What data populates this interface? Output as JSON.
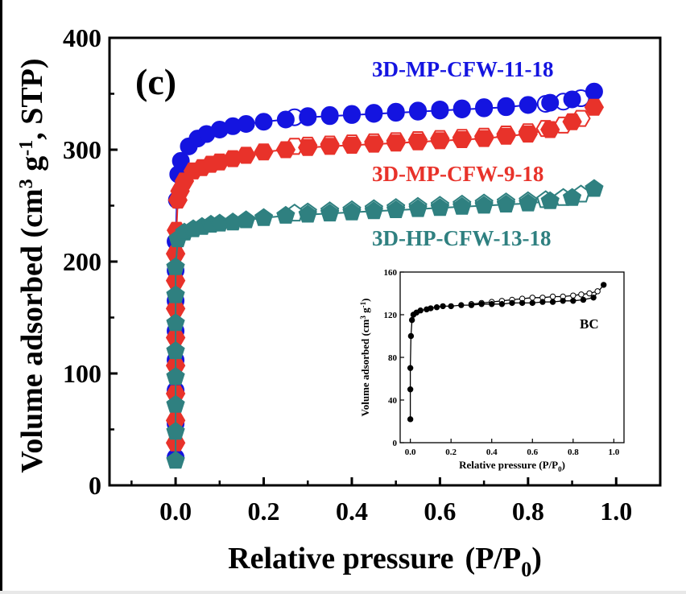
{
  "chart_data": [
    {
      "type": "scatter",
      "panel_label": "(c)",
      "xlabel": "Relative pressure",
      "xlabel_unit_main": "(P/P",
      "xlabel_unit_sub": "0",
      "xlabel_unit_close": ")",
      "ylabel_parts": [
        "Volume adsorbed (cm",
        "3",
        " g",
        "-1",
        ", STP)"
      ],
      "xlim": [
        -0.15,
        1.1
      ],
      "ylim": [
        0,
        400
      ],
      "xticks": [
        "0.0",
        "0.2",
        "0.4",
        "0.6",
        "0.8",
        "1.0"
      ],
      "xtick_values": [
        0,
        0.2,
        0.4,
        0.6,
        0.8,
        1.0
      ],
      "yticks": [
        "0",
        "100",
        "200",
        "300",
        "400"
      ],
      "ytick_values": [
        0,
        100,
        200,
        300,
        400
      ],
      "series": [
        {
          "name": "3D-MP-CFW-11-18",
          "color": "#1414e0",
          "marker": "circle",
          "adsorption": [
            [
              0.0,
              25
            ],
            [
              0.0,
              55
            ],
            [
              0.0,
              85
            ],
            [
              0.0,
              112
            ],
            [
              0.0,
              138
            ],
            [
              0.0,
              165
            ],
            [
              0.0,
              192
            ],
            [
              0.0,
              218
            ],
            [
              0.003,
              255
            ],
            [
              0.006,
              278
            ],
            [
              0.012,
              290
            ],
            [
              0.03,
              303
            ],
            [
              0.05,
              310
            ],
            [
              0.07,
              314
            ],
            [
              0.1,
              318
            ],
            [
              0.13,
              321
            ],
            [
              0.16,
              323
            ],
            [
              0.2,
              325
            ],
            [
              0.25,
              327
            ],
            [
              0.3,
              329
            ],
            [
              0.35,
              330
            ],
            [
              0.4,
              331
            ],
            [
              0.45,
              332
            ],
            [
              0.5,
              333
            ],
            [
              0.55,
              334
            ],
            [
              0.6,
              335
            ],
            [
              0.65,
              336
            ],
            [
              0.7,
              337
            ],
            [
              0.75,
              338
            ],
            [
              0.8,
              340
            ],
            [
              0.85,
              342
            ],
            [
              0.9,
              345
            ],
            [
              0.95,
              352
            ]
          ],
          "desorption": [
            [
              0.92,
              346
            ],
            [
              0.88,
              343
            ],
            [
              0.84,
              341
            ],
            [
              0.8,
              340
            ],
            [
              0.75,
              339
            ],
            [
              0.7,
              338
            ],
            [
              0.65,
              337
            ],
            [
              0.6,
              336
            ],
            [
              0.55,
              335
            ],
            [
              0.5,
              334
            ],
            [
              0.45,
              333
            ],
            [
              0.4,
              332
            ],
            [
              0.35,
              331
            ],
            [
              0.3,
              330
            ],
            [
              0.27,
              329
            ]
          ]
        },
        {
          "name": "3D-MP-CFW-9-18",
          "color": "#e8322a",
          "marker": "hexagon",
          "adsorption": [
            [
              0.0,
              38
            ],
            [
              0.0,
              58
            ],
            [
              0.0,
              82
            ],
            [
              0.0,
              107
            ],
            [
              0.0,
              132
            ],
            [
              0.0,
              158
            ],
            [
              0.0,
              183
            ],
            [
              0.0,
              207
            ],
            [
              0.002,
              228
            ],
            [
              0.005,
              255
            ],
            [
              0.01,
              263
            ],
            [
              0.02,
              272
            ],
            [
              0.04,
              281
            ],
            [
              0.06,
              284
            ],
            [
              0.08,
              287
            ],
            [
              0.1,
              289
            ],
            [
              0.13,
              292
            ],
            [
              0.16,
              295
            ],
            [
              0.2,
              298
            ],
            [
              0.25,
              300
            ],
            [
              0.3,
              302
            ],
            [
              0.35,
              303
            ],
            [
              0.4,
              304
            ],
            [
              0.45,
              305
            ],
            [
              0.5,
              306
            ],
            [
              0.55,
              307
            ],
            [
              0.6,
              308
            ],
            [
              0.65,
              309
            ],
            [
              0.7,
              310
            ],
            [
              0.75,
              312
            ],
            [
              0.8,
              314
            ],
            [
              0.85,
              318
            ],
            [
              0.9,
              325
            ],
            [
              0.95,
              338
            ]
          ],
          "desorption": [
            [
              0.92,
              328
            ],
            [
              0.88,
              322
            ],
            [
              0.84,
              319
            ],
            [
              0.8,
              316
            ],
            [
              0.75,
              314
            ],
            [
              0.7,
              312
            ],
            [
              0.65,
              311
            ],
            [
              0.6,
              310
            ],
            [
              0.55,
              309
            ],
            [
              0.5,
              308
            ],
            [
              0.45,
              307
            ],
            [
              0.4,
              306
            ],
            [
              0.35,
              305
            ],
            [
              0.3,
              304
            ],
            [
              0.27,
              303
            ]
          ]
        },
        {
          "name": "3D-HP-CFW-13-18",
          "color": "#2f8080",
          "marker": "pentagon",
          "adsorption": [
            [
              0.0,
              22
            ],
            [
              0.0,
              48
            ],
            [
              0.0,
              72
            ],
            [
              0.0,
              97
            ],
            [
              0.0,
              120
            ],
            [
              0.0,
              145
            ],
            [
              0.0,
              170
            ],
            [
              0.0,
              195
            ],
            [
              0.005,
              220
            ],
            [
              0.02,
              226
            ],
            [
              0.04,
              229
            ],
            [
              0.06,
              231
            ],
            [
              0.08,
              233
            ],
            [
              0.1,
              234
            ],
            [
              0.13,
              235
            ],
            [
              0.16,
              237
            ],
            [
              0.2,
              239
            ],
            [
              0.25,
              241
            ],
            [
              0.3,
              242
            ],
            [
              0.35,
              243
            ],
            [
              0.4,
              244
            ],
            [
              0.45,
              245
            ],
            [
              0.5,
              246
            ],
            [
              0.55,
              247
            ],
            [
              0.6,
              248
            ],
            [
              0.65,
              249
            ],
            [
              0.7,
              250
            ],
            [
              0.75,
              251
            ],
            [
              0.8,
              252
            ],
            [
              0.85,
              254
            ],
            [
              0.9,
              257
            ],
            [
              0.95,
              265
            ]
          ],
          "desorption": [
            [
              0.92,
              260
            ],
            [
              0.88,
              257
            ],
            [
              0.84,
              255
            ],
            [
              0.8,
              254
            ],
            [
              0.75,
              253
            ],
            [
              0.7,
              252
            ],
            [
              0.65,
              251
            ],
            [
              0.6,
              250
            ],
            [
              0.55,
              249
            ],
            [
              0.5,
              248
            ],
            [
              0.45,
              247
            ],
            [
              0.4,
              246
            ],
            [
              0.35,
              245
            ],
            [
              0.3,
              244
            ],
            [
              0.27,
              243
            ]
          ]
        }
      ]
    },
    {
      "type": "line",
      "label": "BC",
      "xlabel_main": "Relative pressure (P/P",
      "xlabel_sub": "0",
      "xlabel_close": ")",
      "ylabel_parts": [
        "Volume adsorbed (cm",
        "3",
        " g",
        "-1",
        ")"
      ],
      "xlim": [
        -0.05,
        1.05
      ],
      "ylim": [
        0,
        160
      ],
      "xticks": [
        "0.0",
        "0.2",
        "0.4",
        "0.6",
        "0.8",
        "1.0"
      ],
      "xtick_values": [
        0,
        0.2,
        0.4,
        0.6,
        0.8,
        1.0
      ],
      "yticks": [
        "0",
        "40",
        "80",
        "120",
        "160"
      ],
      "ytick_values": [
        0,
        40,
        80,
        120,
        160
      ],
      "series": [
        {
          "color": "#000000",
          "adsorption": [
            [
              0.0,
              22
            ],
            [
              0.0,
              50
            ],
            [
              0.0,
              70
            ],
            [
              0.003,
              100
            ],
            [
              0.008,
              115
            ],
            [
              0.015,
              120
            ],
            [
              0.03,
              122
            ],
            [
              0.05,
              124
            ],
            [
              0.08,
              125
            ],
            [
              0.1,
              126
            ],
            [
              0.13,
              127
            ],
            [
              0.16,
              128
            ],
            [
              0.2,
              128
            ],
            [
              0.25,
              129
            ],
            [
              0.3,
              129
            ],
            [
              0.35,
              130
            ],
            [
              0.4,
              130
            ],
            [
              0.45,
              130
            ],
            [
              0.5,
              131
            ],
            [
              0.55,
              131
            ],
            [
              0.6,
              131
            ],
            [
              0.65,
              132
            ],
            [
              0.7,
              132
            ],
            [
              0.75,
              133
            ],
            [
              0.8,
              133
            ],
            [
              0.85,
              134
            ],
            [
              0.9,
              136
            ],
            [
              0.95,
              148
            ]
          ],
          "desorption": [
            [
              0.92,
              142
            ],
            [
              0.88,
              140
            ],
            [
              0.84,
              139
            ],
            [
              0.8,
              138
            ],
            [
              0.75,
              137
            ],
            [
              0.7,
              137
            ],
            [
              0.65,
              136
            ],
            [
              0.6,
              136
            ],
            [
              0.55,
              135
            ],
            [
              0.5,
              134
            ],
            [
              0.45,
              133
            ],
            [
              0.4,
              132
            ],
            [
              0.35,
              131
            ],
            [
              0.3,
              130
            ]
          ]
        }
      ]
    }
  ]
}
